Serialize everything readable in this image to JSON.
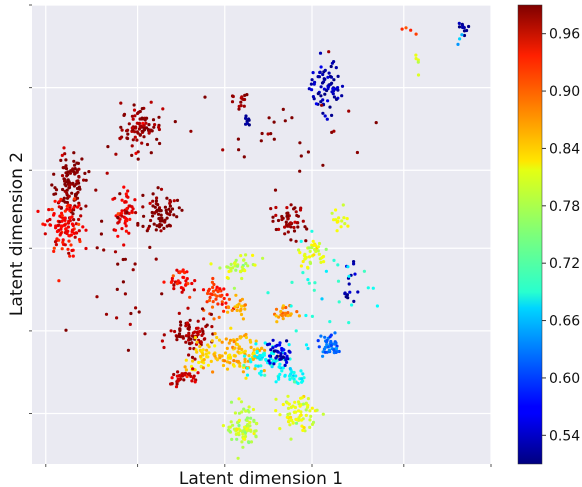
{
  "chart_data": {
    "type": "scatter",
    "xlabel": "Latent dimension 1",
    "ylabel": "Latent dimension 2",
    "xlim": [
      0,
      100
    ],
    "ylim": [
      0,
      100
    ],
    "grid": true,
    "x_ticks": [
      3,
      23,
      42,
      61,
      81,
      100
    ],
    "y_ticks": [
      11,
      29,
      47,
      64,
      82,
      100
    ],
    "tick_labels_shown": false,
    "colormap": "jet",
    "colorbar": {
      "range": [
        0.51,
        0.99
      ],
      "ticks": [
        0.54,
        0.6,
        0.66,
        0.72,
        0.78,
        0.84,
        0.9,
        0.96
      ],
      "tick_labels": [
        "0.54",
        "0.60",
        "0.66",
        "0.72",
        "0.78",
        "0.84",
        "0.90",
        "0.96"
      ]
    },
    "clusters": [
      {
        "x": 94,
        "y": 95,
        "spread": [
          0.8,
          0.8
        ],
        "count": 10,
        "value": 0.52
      },
      {
        "x": 93,
        "y": 93,
        "spread": [
          0.6,
          0.6
        ],
        "count": 3,
        "value": 0.66
      },
      {
        "x": 64,
        "y": 82,
        "spread": [
          1.8,
          3.0
        ],
        "count": 70,
        "value": 0.53
      },
      {
        "x": 45,
        "y": 79,
        "spread": [
          1.2,
          1.0
        ],
        "count": 15,
        "value": 0.98
      },
      {
        "x": 47,
        "y": 75,
        "spread": [
          0.5,
          0.8
        ],
        "count": 8,
        "value": 0.52
      },
      {
        "x": 24,
        "y": 73,
        "spread": [
          2.2,
          2.5
        ],
        "count": 90,
        "value": 0.98
      },
      {
        "x": 8,
        "y": 61,
        "spread": [
          1.8,
          3.5
        ],
        "count": 110,
        "value": 0.99
      },
      {
        "x": 7,
        "y": 52,
        "spread": [
          2.0,
          3.0
        ],
        "count": 110,
        "value": 0.93
      },
      {
        "x": 20,
        "y": 55,
        "spread": [
          1.5,
          2.5
        ],
        "count": 50,
        "value": 0.94
      },
      {
        "x": 28,
        "y": 55,
        "spread": [
          2.0,
          2.2
        ],
        "count": 70,
        "value": 0.99
      },
      {
        "x": 56,
        "y": 53,
        "spread": [
          1.8,
          2.0
        ],
        "count": 50,
        "value": 0.98
      },
      {
        "x": 67,
        "y": 53,
        "spread": [
          1.0,
          1.5
        ],
        "count": 15,
        "value": 0.8
      },
      {
        "x": 61,
        "y": 46,
        "spread": [
          1.5,
          1.5
        ],
        "count": 40,
        "value": 0.8
      },
      {
        "x": 45,
        "y": 43,
        "spread": [
          2.0,
          1.5
        ],
        "count": 40,
        "value": 0.78
      },
      {
        "x": 33,
        "y": 40,
        "spread": [
          1.5,
          1.5
        ],
        "count": 35,
        "value": 0.93
      },
      {
        "x": 40,
        "y": 36,
        "spread": [
          1.5,
          2.0
        ],
        "count": 45,
        "value": 0.91
      },
      {
        "x": 45,
        "y": 34,
        "spread": [
          1.0,
          1.0
        ],
        "count": 20,
        "value": 0.85
      },
      {
        "x": 55,
        "y": 33,
        "spread": [
          1.2,
          1.0
        ],
        "count": 25,
        "value": 0.86
      },
      {
        "x": 35,
        "y": 28,
        "spread": [
          2.5,
          2.0
        ],
        "count": 80,
        "value": 0.97
      },
      {
        "x": 37,
        "y": 23,
        "spread": [
          1.5,
          2.0
        ],
        "count": 40,
        "value": 0.83
      },
      {
        "x": 45,
        "y": 24,
        "spread": [
          3.0,
          2.0
        ],
        "count": 100,
        "value": 0.84
      },
      {
        "x": 51,
        "y": 23,
        "spread": [
          2.5,
          1.5
        ],
        "count": 60,
        "value": 0.69
      },
      {
        "x": 54,
        "y": 24,
        "spread": [
          1.5,
          1.5
        ],
        "count": 40,
        "value": 0.55
      },
      {
        "x": 65,
        "y": 26,
        "spread": [
          1.5,
          1.5
        ],
        "count": 40,
        "value": 0.62
      },
      {
        "x": 57,
        "y": 19,
        "spread": [
          1.5,
          1.0
        ],
        "count": 30,
        "value": 0.69
      },
      {
        "x": 33,
        "y": 19,
        "spread": [
          1.5,
          1.0
        ],
        "count": 35,
        "value": 0.96
      },
      {
        "x": 46,
        "y": 8,
        "spread": [
          1.8,
          2.5
        ],
        "count": 80,
        "value": 0.78
      },
      {
        "x": 58,
        "y": 11,
        "spread": [
          2.0,
          2.0
        ],
        "count": 70,
        "value": 0.8
      },
      {
        "x": 69,
        "y": 39,
        "spread": [
          0.8,
          2.5
        ],
        "count": 15,
        "value": 0.53
      },
      {
        "x": 84,
        "y": 87,
        "spread": [
          0.8,
          1.0
        ],
        "count": 5,
        "value": 0.8
      },
      {
        "x": 82,
        "y": 94,
        "spread": [
          1.5,
          0.5
        ],
        "count": 4,
        "value": 0.9
      },
      {
        "x": 20,
        "y": 45,
        "spread": [
          6.0,
          8.0
        ],
        "count": 40,
        "value": 0.98
      },
      {
        "x": 55,
        "y": 70,
        "spread": [
          8.0,
          6.0
        ],
        "count": 30,
        "value": 0.99
      },
      {
        "x": 65,
        "y": 38,
        "spread": [
          6.0,
          6.0
        ],
        "count": 30,
        "value": 0.7
      }
    ]
  }
}
